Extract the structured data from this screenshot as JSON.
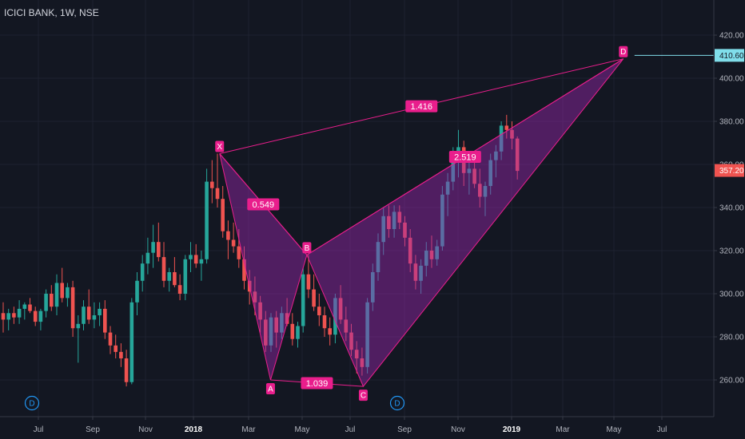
{
  "header": {
    "symbol": "ICICI BANK, 1W, NSE"
  },
  "colors": {
    "background": "#131722",
    "up": "#26a69a",
    "down": "#ef5350",
    "pattern": "#e91e8c",
    "pattern_fill": "rgba(156, 39, 176, 0.45)",
    "target_line": "#80deea",
    "last_price": "#ef5350",
    "dividend": "#2196f3"
  },
  "chart_data": {
    "type": "candlestick",
    "title": "ICICI BANK, 1W, NSE",
    "x_ticks": [
      {
        "label": "Jul",
        "year": false
      },
      {
        "label": "Sep",
        "year": false
      },
      {
        "label": "Nov",
        "year": false
      },
      {
        "label": "2018",
        "year": true
      },
      {
        "label": "Mar",
        "year": false
      },
      {
        "label": "May",
        "year": false
      },
      {
        "label": "Jul",
        "year": false
      },
      {
        "label": "Sep",
        "year": false
      },
      {
        "label": "Nov",
        "year": false
      },
      {
        "label": "2019",
        "year": true
      },
      {
        "label": "Mar",
        "year": false
      },
      {
        "label": "May",
        "year": false
      },
      {
        "label": "Jul",
        "year": false
      }
    ],
    "y_ticks": [
      "420.00",
      "400.00",
      "380.00",
      "360.00",
      "340.00",
      "320.00",
      "300.00",
      "280.00",
      "260.00"
    ],
    "ylim": [
      243,
      432
    ],
    "candles": [
      [
        291,
        296,
        282,
        288
      ],
      [
        288,
        293,
        283,
        291
      ],
      [
        291,
        294,
        286,
        289
      ],
      [
        289,
        297,
        286,
        293
      ],
      [
        293,
        296,
        288,
        295
      ],
      [
        295,
        298,
        291,
        292
      ],
      [
        292,
        294,
        285,
        287
      ],
      [
        287,
        293,
        283,
        292
      ],
      [
        292,
        302,
        289,
        300
      ],
      [
        300,
        304,
        292,
        294
      ],
      [
        294,
        309,
        290,
        305
      ],
      [
        305,
        312,
        296,
        298
      ],
      [
        298,
        305,
        294,
        303
      ],
      [
        303,
        306,
        280,
        284
      ],
      [
        284,
        290,
        268,
        286
      ],
      [
        286,
        297,
        283,
        294
      ],
      [
        294,
        302,
        286,
        288
      ],
      [
        288,
        296,
        284,
        290
      ],
      [
        290,
        296,
        285,
        293
      ],
      [
        293,
        297,
        279,
        282
      ],
      [
        282,
        285,
        272,
        276
      ],
      [
        276,
        281,
        270,
        273
      ],
      [
        273,
        277,
        266,
        270
      ],
      [
        270,
        274,
        257,
        259
      ],
      [
        259,
        298,
        258,
        296
      ],
      [
        296,
        310,
        290,
        306
      ],
      [
        306,
        318,
        301,
        314
      ],
      [
        314,
        326,
        309,
        319
      ],
      [
        319,
        332,
        312,
        324
      ],
      [
        324,
        333,
        315,
        317
      ],
      [
        317,
        324,
        303,
        306
      ],
      [
        306,
        312,
        301,
        310
      ],
      [
        310,
        317,
        303,
        304
      ],
      [
        304,
        309,
        297,
        300
      ],
      [
        300,
        318,
        297,
        316
      ],
      [
        316,
        324,
        310,
        318
      ],
      [
        318,
        323,
        312,
        314
      ],
      [
        314,
        320,
        306,
        316
      ],
      [
        316,
        358,
        314,
        352
      ],
      [
        352,
        362,
        342,
        349
      ],
      [
        349,
        365,
        340,
        344
      ],
      [
        344,
        350,
        326,
        329
      ],
      [
        329,
        334,
        316,
        325
      ],
      [
        325,
        333,
        319,
        322
      ],
      [
        322,
        330,
        312,
        316
      ],
      [
        316,
        322,
        302,
        306
      ],
      [
        306,
        311,
        295,
        301
      ],
      [
        301,
        308,
        290,
        296
      ],
      [
        296,
        299,
        282,
        288
      ],
      [
        288,
        292,
        273,
        276
      ],
      [
        276,
        291,
        273,
        289
      ],
      [
        289,
        292,
        275,
        282
      ],
      [
        282,
        294,
        279,
        291
      ],
      [
        291,
        298,
        285,
        286
      ],
      [
        286,
        291,
        276,
        279
      ],
      [
        279,
        287,
        275,
        285
      ],
      [
        285,
        312,
        282,
        309
      ],
      [
        309,
        318,
        298,
        302
      ],
      [
        302,
        309,
        292,
        294
      ],
      [
        294,
        300,
        285,
        290
      ],
      [
        290,
        294,
        280,
        284
      ],
      [
        284,
        289,
        276,
        281
      ],
      [
        281,
        300,
        277,
        298
      ],
      [
        298,
        304,
        286,
        288
      ],
      [
        288,
        294,
        278,
        282
      ],
      [
        282,
        286,
        271,
        274
      ],
      [
        274,
        278,
        263,
        270
      ],
      [
        270,
        275,
        262,
        266
      ],
      [
        266,
        298,
        263,
        296
      ],
      [
        296,
        314,
        292,
        310
      ],
      [
        310,
        328,
        306,
        324
      ],
      [
        324,
        340,
        318,
        336
      ],
      [
        336,
        341,
        326,
        330
      ],
      [
        330,
        341,
        326,
        338
      ],
      [
        338,
        341,
        330,
        333
      ],
      [
        333,
        336,
        322,
        326
      ],
      [
        326,
        330,
        310,
        314
      ],
      [
        314,
        318,
        302,
        306
      ],
      [
        306,
        316,
        300,
        313
      ],
      [
        313,
        324,
        308,
        320
      ],
      [
        320,
        327,
        312,
        316
      ],
      [
        316,
        325,
        313,
        322
      ],
      [
        322,
        350,
        320,
        346
      ],
      [
        346,
        356,
        336,
        352
      ],
      [
        352,
        368,
        348,
        362
      ],
      [
        362,
        376,
        354,
        368
      ],
      [
        368,
        371,
        350,
        356
      ],
      [
        356,
        364,
        346,
        358
      ],
      [
        358,
        366,
        349,
        351
      ],
      [
        351,
        358,
        340,
        345
      ],
      [
        345,
        352,
        336,
        350
      ],
      [
        350,
        365,
        346,
        362
      ],
      [
        362,
        369,
        354,
        366
      ],
      [
        366,
        380,
        362,
        378
      ],
      [
        378,
        383,
        372,
        376
      ],
      [
        376,
        380,
        367,
        372
      ],
      [
        372,
        373,
        353,
        357
      ]
    ],
    "pattern": {
      "points": [
        {
          "label": "X",
          "date": "2018-01-29",
          "price": 365
        },
        {
          "label": "A",
          "date": "2018-03-26",
          "price": 260
        },
        {
          "label": "B",
          "date": "2018-05-07",
          "price": 318
        },
        {
          "label": "C",
          "date": "2018-07-16",
          "price": 257
        },
        {
          "label": "D",
          "date": "2019-05-13",
          "price": 409
        }
      ],
      "ratios": {
        "xd": "1.416",
        "xb": "0.549",
        "ac": "1.039",
        "bd": "2.519"
      }
    },
    "target_price": "410.60",
    "last_price": "357.20",
    "dividend_markers": [
      "D",
      "D"
    ]
  }
}
